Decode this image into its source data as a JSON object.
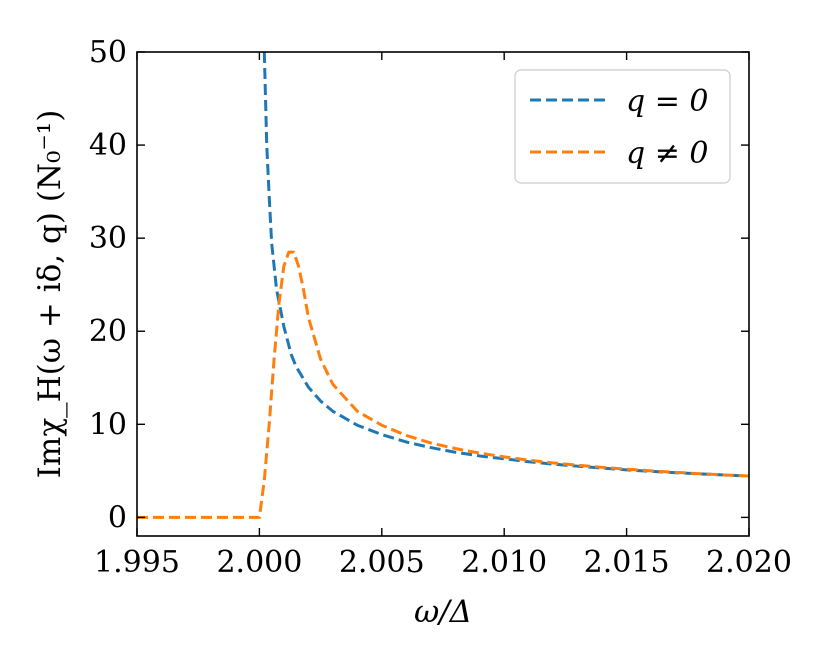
{
  "chart_data": {
    "type": "line",
    "xlabel": "ω/Δ",
    "ylabel": "Imχ_H(ω + iδ, q)  (N₀⁻¹)",
    "xlim": [
      1.995,
      2.02
    ],
    "ylim": [
      -2,
      50
    ],
    "x_ticks": [
      1.995,
      2.0,
      2.005,
      2.01,
      2.015,
      2.02
    ],
    "x_tick_labels": [
      "1.995",
      "2.000",
      "2.005",
      "2.010",
      "2.015",
      "2.020"
    ],
    "y_ticks": [
      0,
      10,
      20,
      30,
      40,
      50
    ],
    "y_tick_labels": [
      "0",
      "10",
      "20",
      "30",
      "40",
      "50"
    ],
    "grid": false,
    "legend_position": "top-right",
    "series": [
      {
        "name": "q = 0",
        "color": "#1f77b4",
        "style": "dashed",
        "x": [
          2.0002,
          2.0003,
          2.0004,
          2.0005,
          2.0007,
          2.001,
          2.0013,
          2.0015,
          2.002,
          2.0025,
          2.003,
          2.004,
          2.005,
          2.006,
          2.007,
          2.008,
          2.009,
          2.01,
          2.011,
          2.012,
          2.013,
          2.014,
          2.015,
          2.016,
          2.017,
          2.018,
          2.019,
          2.02
        ],
        "y": [
          50,
          40,
          34.5,
          29.5,
          24.5,
          20.5,
          17.5,
          16.2,
          14.0,
          12.5,
          11.4,
          9.9,
          8.9,
          8.1,
          7.5,
          7.0,
          6.6,
          6.3,
          5.98,
          5.72,
          5.5,
          5.3,
          5.1,
          4.95,
          4.8,
          4.67,
          4.55,
          4.44
        ]
      },
      {
        "name": "q ≠ 0",
        "color": "#ff7f0e",
        "style": "dashed",
        "x": [
          1.995,
          1.996,
          1.997,
          1.998,
          1.999,
          1.9999,
          2.0,
          2.0002,
          2.0004,
          2.0006,
          2.0008,
          2.001,
          2.0012,
          2.0014,
          2.0016,
          2.0018,
          2.002,
          2.0025,
          2.003,
          2.004,
          2.005,
          2.006,
          2.007,
          2.008,
          2.009,
          2.01,
          2.011,
          2.012,
          2.013,
          2.014,
          2.015,
          2.016,
          2.017,
          2.018,
          2.019,
          2.02
        ],
        "y": [
          0,
          0,
          0,
          0,
          0,
          0,
          0,
          4,
          10,
          17,
          23,
          27,
          28.5,
          28.5,
          27,
          24.5,
          21.5,
          17,
          14.3,
          11.4,
          9.9,
          8.8,
          8.0,
          7.4,
          6.9,
          6.5,
          6.15,
          5.85,
          5.6,
          5.38,
          5.18,
          5.0,
          4.84,
          4.69,
          4.56,
          4.45
        ]
      }
    ]
  }
}
